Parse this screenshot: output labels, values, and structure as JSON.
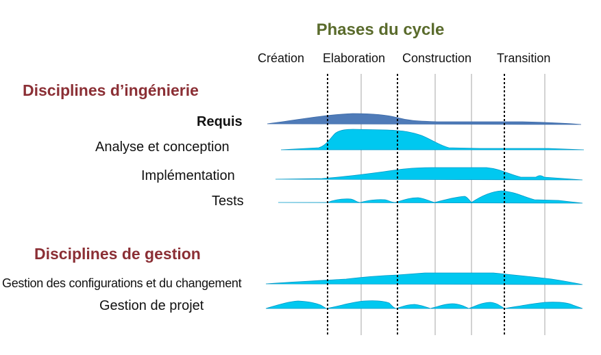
{
  "title": "Phases du cycle",
  "phases": [
    "Création",
    "Elaboration",
    "Construction",
    "Transition"
  ],
  "sections": {
    "engineering": "Disciplines d’ingénierie",
    "management": "Disciplines de gestion"
  },
  "disciplines": {
    "requis": "Requis",
    "analyse": "Analyse et conception",
    "implementation": "Implémentation",
    "tests": "Tests",
    "configurations": "Gestion des configurations et du changement",
    "projet": "Gestion de projet"
  },
  "colors": {
    "title": "#5a6b2c",
    "section": "#8b2f35",
    "requis_fill": "#4f7bb8",
    "workflow_fill": "#00c8f0"
  }
}
